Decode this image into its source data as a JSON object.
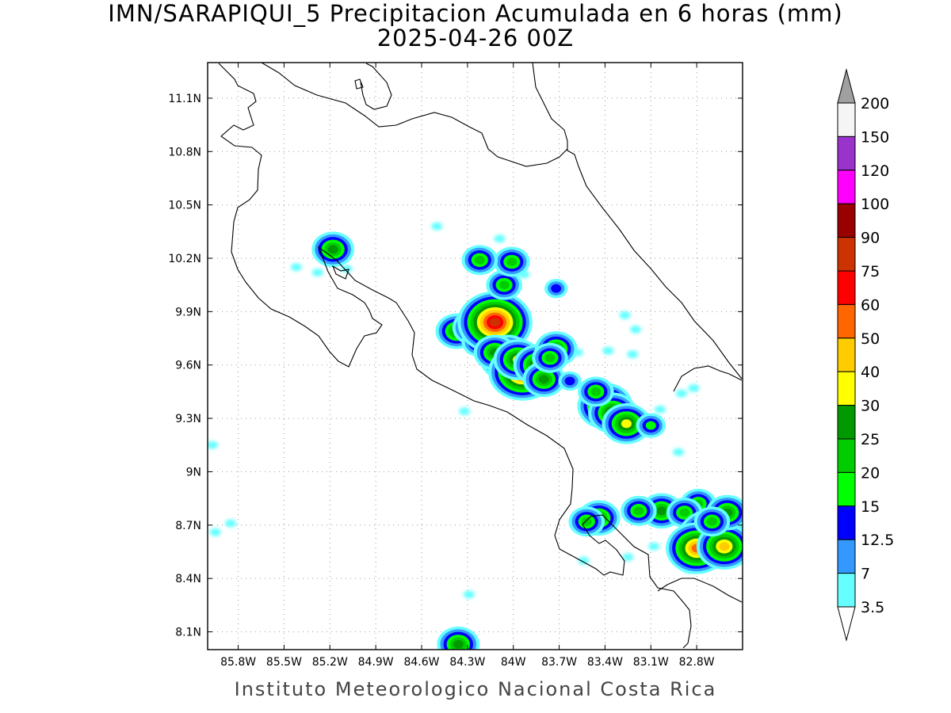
{
  "title": "IMN/SARAPIQUI_5 Precipitacion Acumulada en 6 horas (mm)",
  "subtitle": "2025-04-26 00Z",
  "footer": "Instituto Meteorologico Nacional Costa Rica",
  "map": {
    "lon_range": [
      -86.0,
      -82.5
    ],
    "lat_range": [
      8.0,
      11.3
    ],
    "lon_ticks": [
      {
        "value": -85.8,
        "label": "85.8W"
      },
      {
        "value": -85.5,
        "label": "85.5W"
      },
      {
        "value": -85.2,
        "label": "85.2W"
      },
      {
        "value": -84.9,
        "label": "84.9W"
      },
      {
        "value": -84.6,
        "label": "84.6W"
      },
      {
        "value": -84.3,
        "label": "84.3W"
      },
      {
        "value": -84.0,
        "label": "84W"
      },
      {
        "value": -83.7,
        "label": "83.7W"
      },
      {
        "value": -83.4,
        "label": "83.4W"
      },
      {
        "value": -83.1,
        "label": "83.1W"
      },
      {
        "value": -82.8,
        "label": "82.8W"
      }
    ],
    "lat_ticks": [
      {
        "value": 11.1,
        "label": "11.1N"
      },
      {
        "value": 10.8,
        "label": "10.8N"
      },
      {
        "value": 10.5,
        "label": "10.5N"
      },
      {
        "value": 10.2,
        "label": "10.2N"
      },
      {
        "value": 9.9,
        "label": "9.9N"
      },
      {
        "value": 9.6,
        "label": "9.6N"
      },
      {
        "value": 9.3,
        "label": "9.3N"
      },
      {
        "value": 9.0,
        "label": "9N"
      },
      {
        "value": 8.7,
        "label": "8.7N"
      },
      {
        "value": 8.4,
        "label": "8.4N"
      },
      {
        "value": 8.1,
        "label": "8.1N"
      }
    ],
    "grid": true
  },
  "colorbar": {
    "levels": [
      "3.5",
      "7",
      "12.5",
      "15",
      "20",
      "25",
      "30",
      "40",
      "50",
      "60",
      "75",
      "90",
      "100",
      "120",
      "150",
      "200"
    ],
    "colors": [
      "#66ffff",
      "#3399ff",
      "#0000ff",
      "#00ff00",
      "#00cc00",
      "#009900",
      "#ffff00",
      "#ffcc00",
      "#ff6600",
      "#ff0000",
      "#cc3300",
      "#990000",
      "#ff00ff",
      "#9933cc",
      "#f5f5f5"
    ],
    "top_arrow_color": "#a0a0a0",
    "bottom_arrow_color": "#ffffff"
  },
  "precip_cells": [
    {
      "lon": -84.37,
      "lat": 9.79,
      "level": 5
    },
    {
      "lon": -84.26,
      "lat": 9.81,
      "level": 5
    },
    {
      "lon": -84.22,
      "lat": 9.73,
      "level": 4
    },
    {
      "lon": -84.12,
      "lat": 9.84,
      "level": 10
    },
    {
      "lon": -84.04,
      "lat": 9.64,
      "level": 7
    },
    {
      "lon": -84.12,
      "lat": 9.67,
      "level": 5
    },
    {
      "lon": -83.94,
      "lat": 9.56,
      "level": 9
    },
    {
      "lon": -83.97,
      "lat": 9.63,
      "level": 6
    },
    {
      "lon": -83.84,
      "lat": 9.6,
      "level": 6
    },
    {
      "lon": -83.8,
      "lat": 9.52,
      "level": 5
    },
    {
      "lon": -83.72,
      "lat": 9.69,
      "level": 5
    },
    {
      "lon": -83.76,
      "lat": 9.64,
      "level": 4
    },
    {
      "lon": -84.06,
      "lat": 10.05,
      "level": 4
    },
    {
      "lon": -84.01,
      "lat": 10.18,
      "level": 4
    },
    {
      "lon": -84.22,
      "lat": 10.19,
      "level": 4
    },
    {
      "lon": -83.72,
      "lat": 10.03,
      "level": 2
    },
    {
      "lon": -85.18,
      "lat": 10.25,
      "level": 5
    },
    {
      "lon": -83.4,
      "lat": 9.37,
      "level": 7
    },
    {
      "lon": -83.35,
      "lat": 9.33,
      "level": 6
    },
    {
      "lon": -83.26,
      "lat": 9.27,
      "level": 6
    },
    {
      "lon": -83.46,
      "lat": 9.45,
      "level": 4
    },
    {
      "lon": -83.1,
      "lat": 9.26,
      "level": 3
    },
    {
      "lon": -83.44,
      "lat": 8.74,
      "level": 5
    },
    {
      "lon": -83.52,
      "lat": 8.72,
      "level": 4
    },
    {
      "lon": -83.03,
      "lat": 8.78,
      "level": 5
    },
    {
      "lon": -83.18,
      "lat": 8.78,
      "level": 4
    },
    {
      "lon": -82.79,
      "lat": 8.82,
      "level": 4
    },
    {
      "lon": -82.88,
      "lat": 8.77,
      "level": 4
    },
    {
      "lon": -82.7,
      "lat": 8.63,
      "level": 9
    },
    {
      "lon": -82.8,
      "lat": 8.57,
      "level": 8
    },
    {
      "lon": -82.62,
      "lat": 8.58,
      "level": 7
    },
    {
      "lon": -82.6,
      "lat": 8.77,
      "level": 5
    },
    {
      "lon": -82.7,
      "lat": 8.72,
      "level": 4
    },
    {
      "lon": -84.36,
      "lat": 8.03,
      "level": 5
    },
    {
      "lon": -83.63,
      "lat": 9.51,
      "level": 2
    }
  ],
  "light_patches": [
    {
      "lon": -85.42,
      "lat": 10.15
    },
    {
      "lon": -85.09,
      "lat": 10.14
    },
    {
      "lon": -85.28,
      "lat": 10.12
    },
    {
      "lon": -85.97,
      "lat": 9.15
    },
    {
      "lon": -85.85,
      "lat": 8.71
    },
    {
      "lon": -85.95,
      "lat": 8.66
    },
    {
      "lon": -84.32,
      "lat": 9.34
    },
    {
      "lon": -84.29,
      "lat": 8.31
    },
    {
      "lon": -83.27,
      "lat": 9.88
    },
    {
      "lon": -83.2,
      "lat": 9.8
    },
    {
      "lon": -82.82,
      "lat": 9.47
    },
    {
      "lon": -82.9,
      "lat": 9.44
    },
    {
      "lon": -82.92,
      "lat": 9.11
    },
    {
      "lon": -83.22,
      "lat": 9.66
    },
    {
      "lon": -83.38,
      "lat": 9.68
    },
    {
      "lon": -83.58,
      "lat": 9.67
    },
    {
      "lon": -83.04,
      "lat": 9.35
    },
    {
      "lon": -82.85,
      "lat": 8.45
    },
    {
      "lon": -83.08,
      "lat": 8.58
    },
    {
      "lon": -83.25,
      "lat": 8.52
    },
    {
      "lon": -83.54,
      "lat": 8.5
    },
    {
      "lon": -84.5,
      "lat": 10.38
    },
    {
      "lon": -84.09,
      "lat": 10.31
    },
    {
      "lon": -83.93,
      "lat": 10.11
    }
  ]
}
